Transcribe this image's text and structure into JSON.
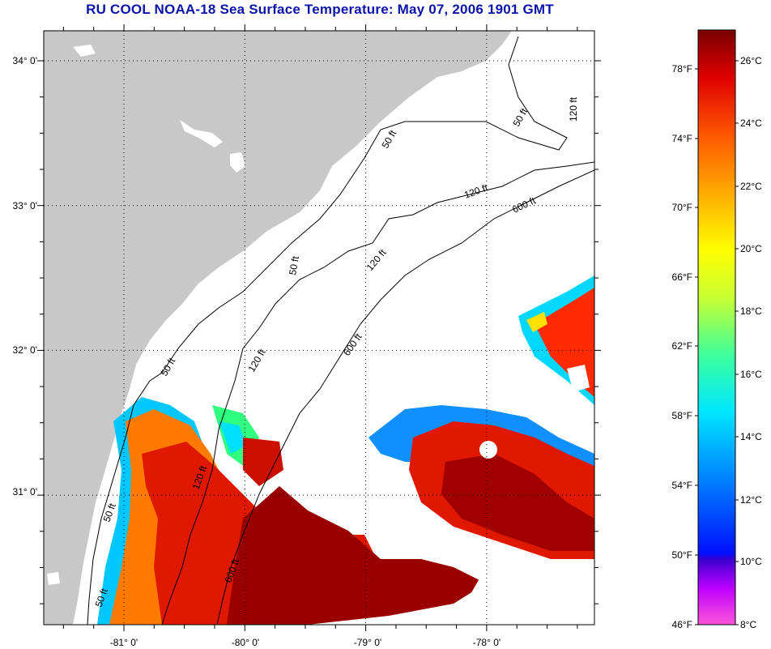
{
  "title": "RU COOL  NOAA-18  Sea Surface Temperature:  May 07, 2006 1901 GMT",
  "lat_ticks": [
    {
      "label": "34° 0'",
      "value": 34.0
    },
    {
      "label": "33° 0'",
      "value": 33.0
    },
    {
      "label": "32° 0'",
      "value": 32.0
    },
    {
      "label": "31° 0'",
      "value": 31.0
    }
  ],
  "lon_ticks": [
    {
      "label": "-81° 0'",
      "value": -81.0
    },
    {
      "label": "-80° 0'",
      "value": -80.0
    },
    {
      "label": "-79° 0'",
      "value": -79.0
    },
    {
      "label": "-78° 0'",
      "value": -78.0
    }
  ],
  "bathymetry_labels": [
    "50 ft",
    "120 ft",
    "600 ft"
  ],
  "colorbar": {
    "fahrenheit": [
      "78°F",
      "74°F",
      "70°F",
      "66°F",
      "62°F",
      "58°F",
      "54°F",
      "50°F",
      "46°F"
    ],
    "celsius": [
      "26°C",
      "24°C",
      "22°C",
      "20°C",
      "18°C",
      "16°C",
      "14°C",
      "12°C",
      "10°C",
      "8°C"
    ],
    "colors": [
      "#8b0000",
      "#c80000",
      "#ff2a00",
      "#ff7a00",
      "#ffc000",
      "#ffff00",
      "#9aff3a",
      "#19ffb0",
      "#00e8ff",
      "#008cff",
      "#0010ff",
      "#2a00c8",
      "#c000ff",
      "#ff4ad8"
    ]
  },
  "colors": {
    "land": "#c8c8c8",
    "title": "#0b14a8",
    "ocean_nodata": "#ffffff"
  }
}
